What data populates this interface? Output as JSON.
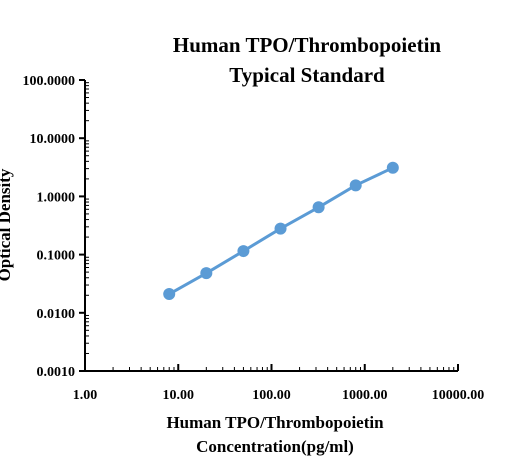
{
  "chart_data": {
    "type": "line",
    "title_lines": [
      "Human TPO/Thrombopoietin",
      "Typical Standard"
    ],
    "xlabel_lines": [
      "Human TPO/Thrombopoietin",
      "Concentration(pg/ml)"
    ],
    "ylabel": "Optical Density",
    "x_scale": "log",
    "y_scale": "log",
    "xlim": [
      1,
      10000
    ],
    "ylim": [
      0.001,
      100
    ],
    "x_tick_labels": [
      "1.00",
      "10.00",
      "100.00",
      "1000.00",
      "10000.00"
    ],
    "y_tick_labels": [
      "0.0010",
      "0.0100",
      "0.1000",
      "1.0000",
      "10.0000",
      "100.0000"
    ],
    "x_ticks": [
      1,
      10,
      100,
      1000,
      10000
    ],
    "y_ticks": [
      0.001,
      0.01,
      0.1,
      1,
      10,
      100
    ],
    "grid": false,
    "series": [
      {
        "color": "#5b9bd5",
        "points": [
          {
            "x": 8,
            "y": 0.021
          },
          {
            "x": 20,
            "y": 0.048
          },
          {
            "x": 50,
            "y": 0.115
          },
          {
            "x": 125,
            "y": 0.28
          },
          {
            "x": 320,
            "y": 0.65
          },
          {
            "x": 800,
            "y": 1.55
          },
          {
            "x": 2000,
            "y": 3.1
          }
        ]
      }
    ]
  }
}
